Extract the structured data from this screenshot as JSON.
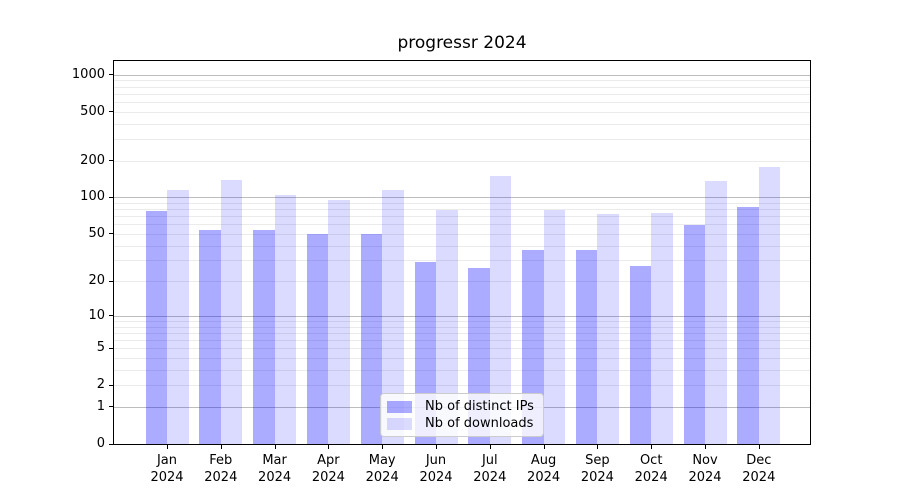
{
  "chart_data": {
    "type": "bar",
    "title": "progressr 2024",
    "categories": [
      "Jan",
      "Feb",
      "Mar",
      "Apr",
      "May",
      "Jun",
      "Jul",
      "Aug",
      "Sep",
      "Oct",
      "Nov",
      "Dec"
    ],
    "category_year": "2024",
    "series": [
      {
        "name": "Nb of distinct IPs",
        "values": [
          77,
          54,
          54,
          50,
          50,
          29,
          26,
          37,
          37,
          27,
          59,
          83
        ],
        "color": "rgba(0,0,255,0.33)"
      },
      {
        "name": "Nb of downloads",
        "values": [
          115,
          139,
          104,
          95,
          115,
          78,
          150,
          78,
          73,
          75,
          135,
          178
        ],
        "color": "rgba(0,0,255,0.14)"
      }
    ],
    "yticks": [
      0,
      1,
      2,
      5,
      10,
      20,
      50,
      100,
      200,
      500,
      1000
    ],
    "ylim": [
      0,
      1291
    ],
    "yscale": "log10(value+1)",
    "xlabel": "",
    "ylabel": "",
    "grid": "both",
    "legend_position": "lower center"
  },
  "colors": {
    "background": "#ffffff",
    "axis": "#000000",
    "grid_major": "#bdbdbd",
    "grid_minor": "#ebebeb",
    "legend_border": "#cccccc",
    "legend_background": "rgba(255,255,255,0.8)"
  }
}
